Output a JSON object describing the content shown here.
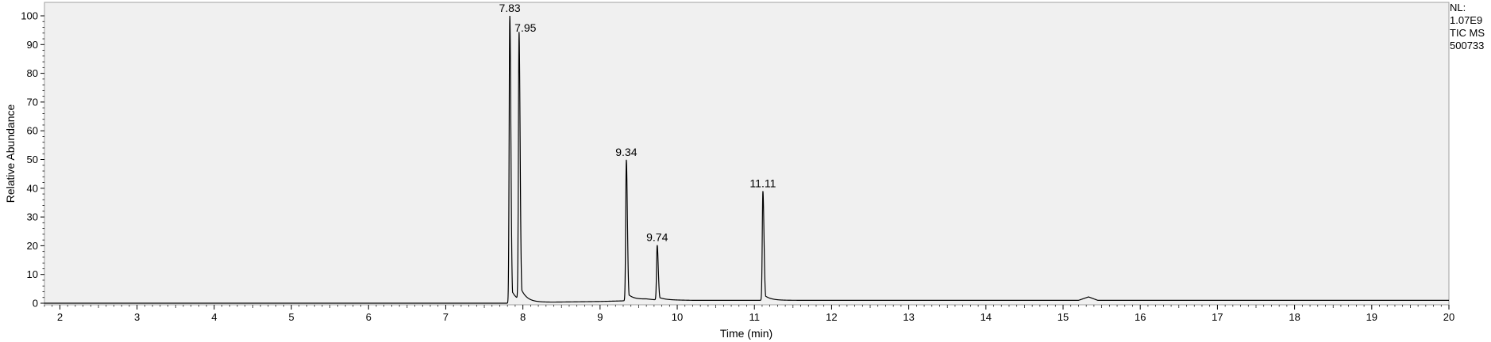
{
  "chart_data": {
    "type": "line",
    "xlabel": "Time (min)",
    "ylabel": "Relative Abundance",
    "xlim": [
      1.8,
      20.0
    ],
    "ylim": [
      0,
      102
    ],
    "x_ticks": [
      2,
      3,
      4,
      5,
      6,
      7,
      8,
      9,
      10,
      11,
      12,
      13,
      14,
      15,
      16,
      17,
      18,
      19,
      20
    ],
    "y_ticks": [
      0,
      10,
      20,
      30,
      40,
      50,
      60,
      70,
      80,
      90,
      100
    ],
    "grid": false,
    "background": "#f0f0f0",
    "line_color": "#000000",
    "baseline": [
      {
        "x": 1.8,
        "y": 0.0
      },
      {
        "x": 7.75,
        "y": 0.0
      },
      {
        "x": 7.89,
        "y": 0.0
      },
      {
        "x": 8.2,
        "y": 0.3
      },
      {
        "x": 9.0,
        "y": 0.6
      },
      {
        "x": 9.28,
        "y": 0.8
      },
      {
        "x": 9.6,
        "y": 1.4
      },
      {
        "x": 9.7,
        "y": 1.2
      },
      {
        "x": 10.2,
        "y": 1.0
      },
      {
        "x": 11.0,
        "y": 1.0
      },
      {
        "x": 12.0,
        "y": 1.0
      },
      {
        "x": 15.2,
        "y": 1.0
      },
      {
        "x": 15.33,
        "y": 2.2
      },
      {
        "x": 15.45,
        "y": 1.0
      },
      {
        "x": 20.0,
        "y": 1.0
      }
    ],
    "peaks": [
      {
        "rt": 7.83,
        "height": 100,
        "label": "7.83"
      },
      {
        "rt": 7.95,
        "height": 93,
        "label": "7.95"
      },
      {
        "rt": 9.34,
        "height": 49,
        "label": "9.34"
      },
      {
        "rt": 9.74,
        "height": 19,
        "label": "9.74"
      },
      {
        "rt": 11.11,
        "height": 38,
        "label": "11.11"
      }
    ]
  },
  "normalization": {
    "nl_label": "NL:",
    "nl_value": "1.07E9",
    "scan_filter": "TIC  MS",
    "sample": "500733"
  }
}
